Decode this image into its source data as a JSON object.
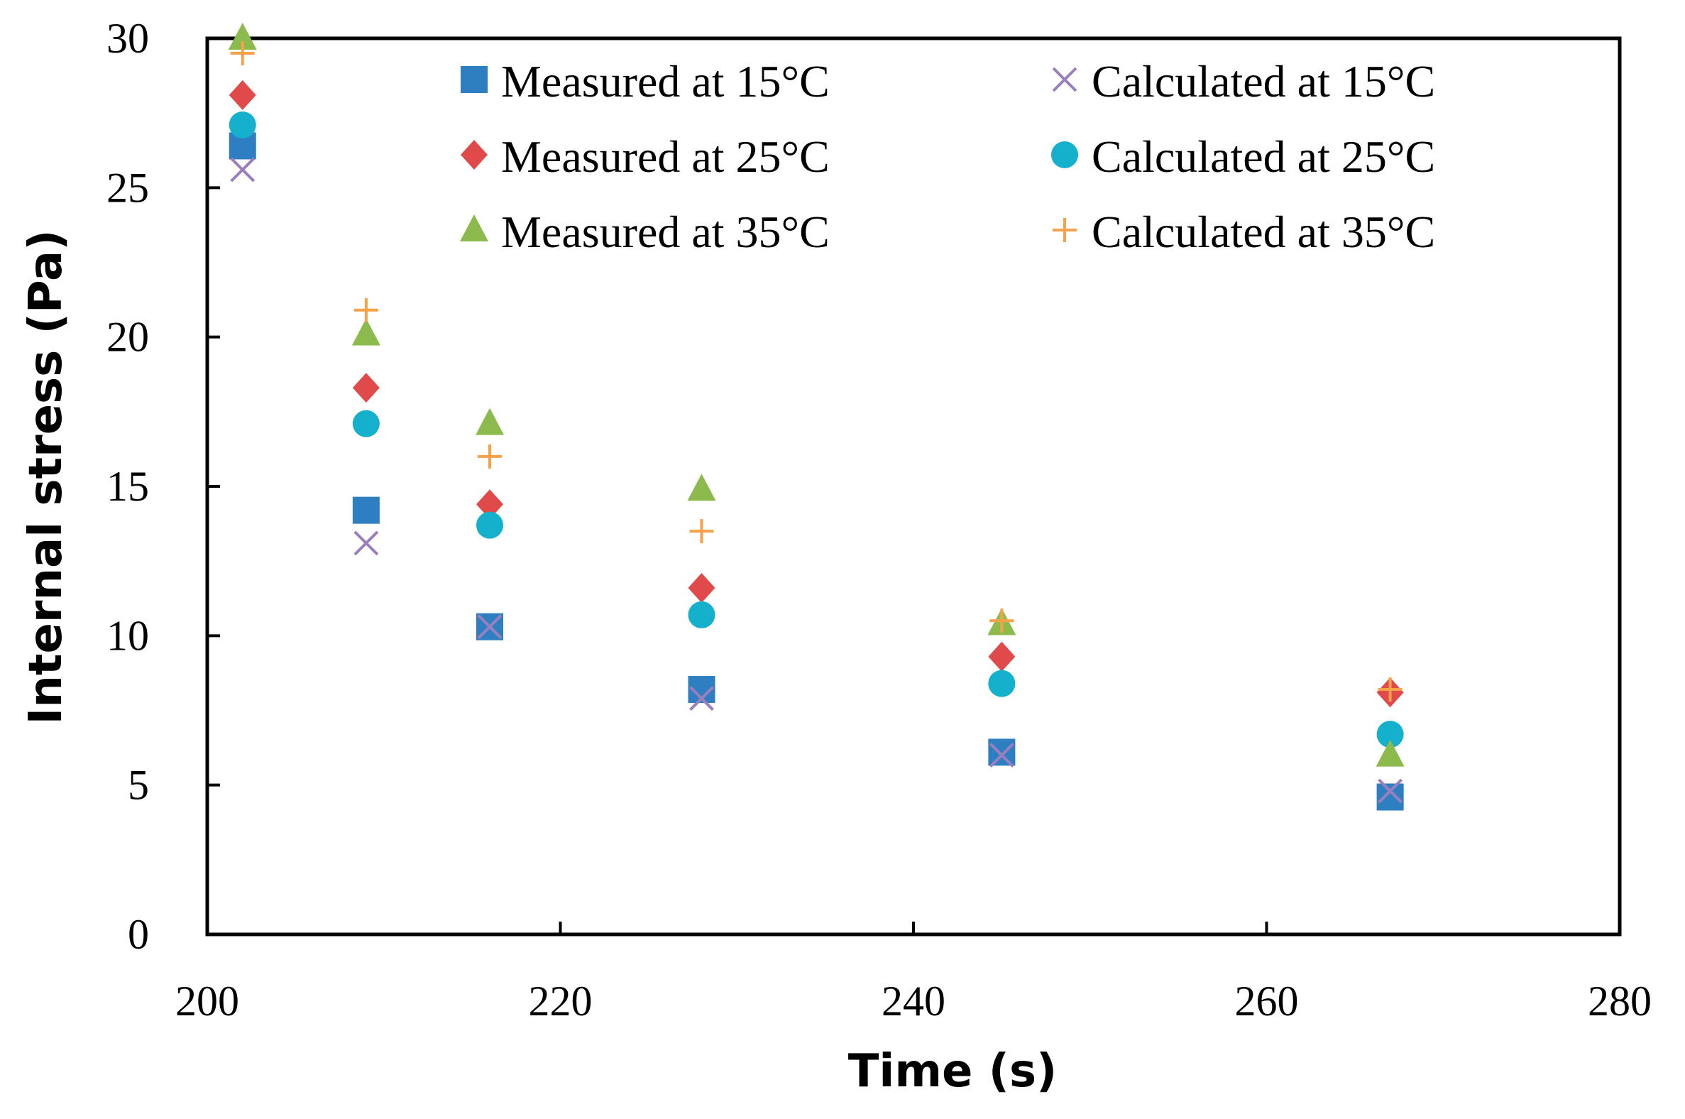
{
  "chart_data": {
    "type": "scatter",
    "title": "",
    "xlabel": "Time (s)",
    "ylabel": "Internal stress (Pa)",
    "xlim": [
      200,
      280
    ],
    "ylim": [
      0,
      30
    ],
    "x_ticks": [
      "200",
      "220",
      "240",
      "260",
      "280"
    ],
    "y_ticks": [
      "0",
      "5",
      "10",
      "15",
      "20",
      "25",
      "30"
    ],
    "grid": false,
    "legend_position": "top",
    "x": [
      202,
      209,
      216,
      228,
      245,
      267
    ],
    "series": [
      {
        "name": "Measured at 15°C",
        "marker": "square",
        "color": "#2e7fc1",
        "values": [
          26.4,
          14.2,
          10.3,
          8.2,
          6.1,
          4.6
        ]
      },
      {
        "name": "Measured at 25°C",
        "marker": "diamond",
        "color": "#e04a4a",
        "values": [
          28.1,
          18.3,
          14.4,
          11.6,
          9.3,
          8.1
        ]
      },
      {
        "name": "Measured at 35°C",
        "marker": "triangle",
        "color": "#8cba4c",
        "values": [
          30.0,
          20.1,
          17.1,
          14.9,
          10.4,
          6.0
        ]
      },
      {
        "name": "Calculated at 15°C",
        "marker": "x",
        "color": "#9a7fbf",
        "values": [
          25.6,
          13.1,
          10.3,
          7.9,
          6.0,
          4.8
        ]
      },
      {
        "name": "Calculated at 25°C",
        "marker": "circle",
        "color": "#14b0cc",
        "values": [
          27.1,
          17.1,
          13.7,
          10.7,
          8.4,
          6.7
        ]
      },
      {
        "name": "Calculated at 35°C",
        "marker": "plus",
        "color": "#f7a24a",
        "values": [
          29.5,
          20.9,
          16.0,
          13.5,
          10.5,
          8.2
        ]
      }
    ]
  }
}
